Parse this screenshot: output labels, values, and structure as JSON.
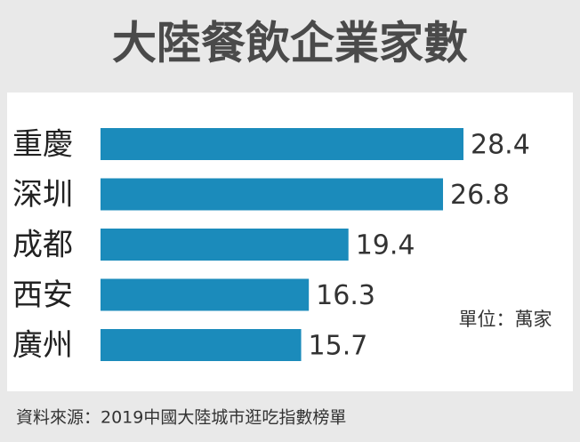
{
  "chart_data": {
    "type": "bar",
    "orientation": "horizontal",
    "title": "大陸餐飲企業家數",
    "categories": [
      "重慶",
      "深圳",
      "成都",
      "西安",
      "廣州"
    ],
    "values": [
      28.4,
      26.8,
      19.4,
      16.3,
      15.7
    ],
    "color": "#1b8bbb",
    "unit": "單位：萬家",
    "source": "資料來源：2019中國大陸城市逛吃指數榜單"
  }
}
